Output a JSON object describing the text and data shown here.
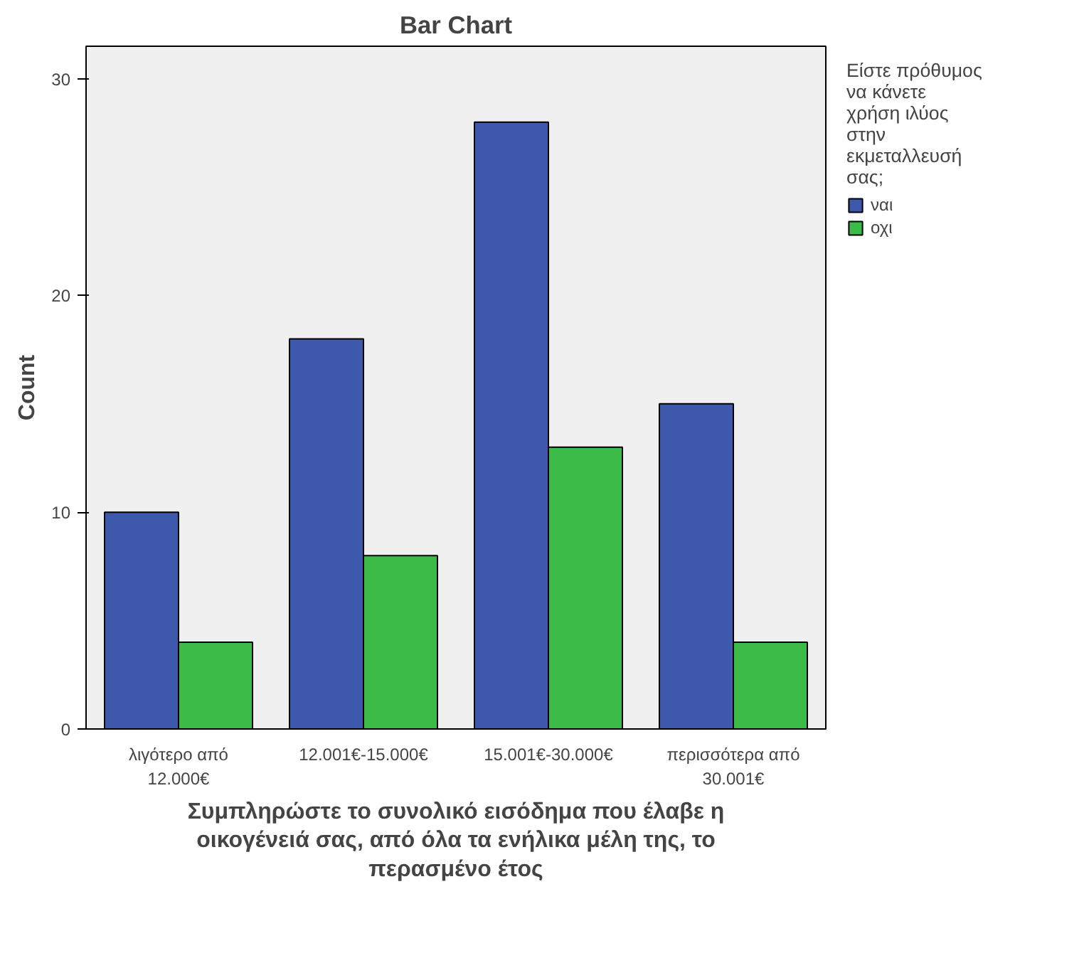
{
  "chart_data": {
    "type": "bar",
    "title": "Bar Chart",
    "xlabel": "Συμπληρώστε το συνολικό εισόδημα που έλαβε η οικογένειά σας, από όλα τα ενήλικα μέλη της, το περασμένο έτος",
    "ylabel": "Count",
    "legend_title": "Είστε πρόθυμος να κάνετε χρήση ιλύος στην εκμεταλλευσή σας;",
    "categories": [
      "λιγότερο από 12.000€",
      "12.001€-15.000€",
      "15.001€-30.000€",
      "περισσότερα από 30.001€"
    ],
    "series": [
      {
        "name": "ναι",
        "color": "#3e58ac",
        "values": [
          10,
          18,
          28,
          15
        ]
      },
      {
        "name": "οχι",
        "color": "#3dbb48",
        "values": [
          4,
          8,
          13,
          4
        ]
      }
    ],
    "ylim": [
      0,
      31.5
    ],
    "yticks": [
      0,
      10,
      20,
      30
    ],
    "grid": false,
    "legend": "right"
  }
}
